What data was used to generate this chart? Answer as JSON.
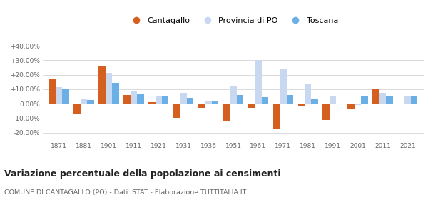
{
  "years": [
    1871,
    1881,
    1901,
    1911,
    1921,
    1931,
    1936,
    1951,
    1961,
    1971,
    1981,
    1991,
    2001,
    2011,
    2021
  ],
  "cantagallo": [
    17.0,
    -7.5,
    26.5,
    6.0,
    1.0,
    -9.5,
    -3.0,
    -12.0,
    -3.0,
    -17.5,
    -1.5,
    -11.0,
    -4.0,
    10.5,
    0.3
  ],
  "provincia_po": [
    11.5,
    3.5,
    21.5,
    9.0,
    5.5,
    7.5,
    2.0,
    12.5,
    30.0,
    24.5,
    13.5,
    5.5,
    -1.0,
    7.5,
    5.0
  ],
  "toscana": [
    10.5,
    2.5,
    14.5,
    6.5,
    5.5,
    4.0,
    2.0,
    6.0,
    4.5,
    6.0,
    3.0,
    -0.5,
    5.0,
    5.0,
    5.0
  ],
  "color_cantagallo": "#d45f1e",
  "color_provincia": "#c8d8f0",
  "color_toscana": "#6aafe6",
  "ylim": [
    -25,
    44
  ],
  "yticks": [
    -20,
    -10,
    0,
    10,
    20,
    30,
    40
  ],
  "ytick_labels": [
    "-20.00%",
    "-10.00%",
    "0.00%",
    "+10.00%",
    "+20.00%",
    "+30.00%",
    "+40.00%"
  ],
  "title": "Variazione percentuale della popolazione ai censimenti",
  "subtitle": "COMUNE DI CANTAGALLO (PO) - Dati ISTAT - Elaborazione TUTTITALIA.IT",
  "legend_labels": [
    "Cantagallo",
    "Provincia di PO",
    "Toscana"
  ],
  "bar_width": 0.27,
  "bg_color": "#f5f5f5"
}
